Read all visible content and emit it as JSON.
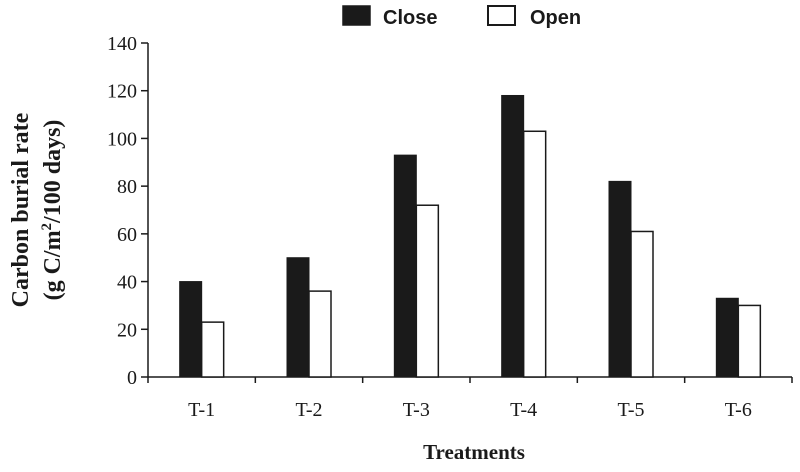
{
  "chart_data": {
    "type": "bar",
    "title": "",
    "xlabel": "Treatments",
    "ylabel_line1": "Carbon burial rate",
    "ylabel_line2_prefix": "(g C/m",
    "ylabel_line2_sup": "2",
    "ylabel_line2_suffix": "/100 days)",
    "categories": [
      "T-1",
      "T-2",
      "T-3",
      "T-4",
      "T-5",
      "T-6"
    ],
    "series": [
      {
        "name": "Close",
        "color": "#1a1a1a",
        "values": [
          40,
          50,
          93,
          118,
          82,
          33
        ]
      },
      {
        "name": "Open",
        "color": "#ffffff",
        "values": [
          23,
          36,
          72,
          103,
          61,
          30
        ]
      }
    ],
    "ylim": [
      0,
      140
    ],
    "yticks": [
      "0",
      "20",
      "40",
      "60",
      "80",
      "100",
      "120",
      "140"
    ],
    "grid": false,
    "legend": "top-center"
  }
}
